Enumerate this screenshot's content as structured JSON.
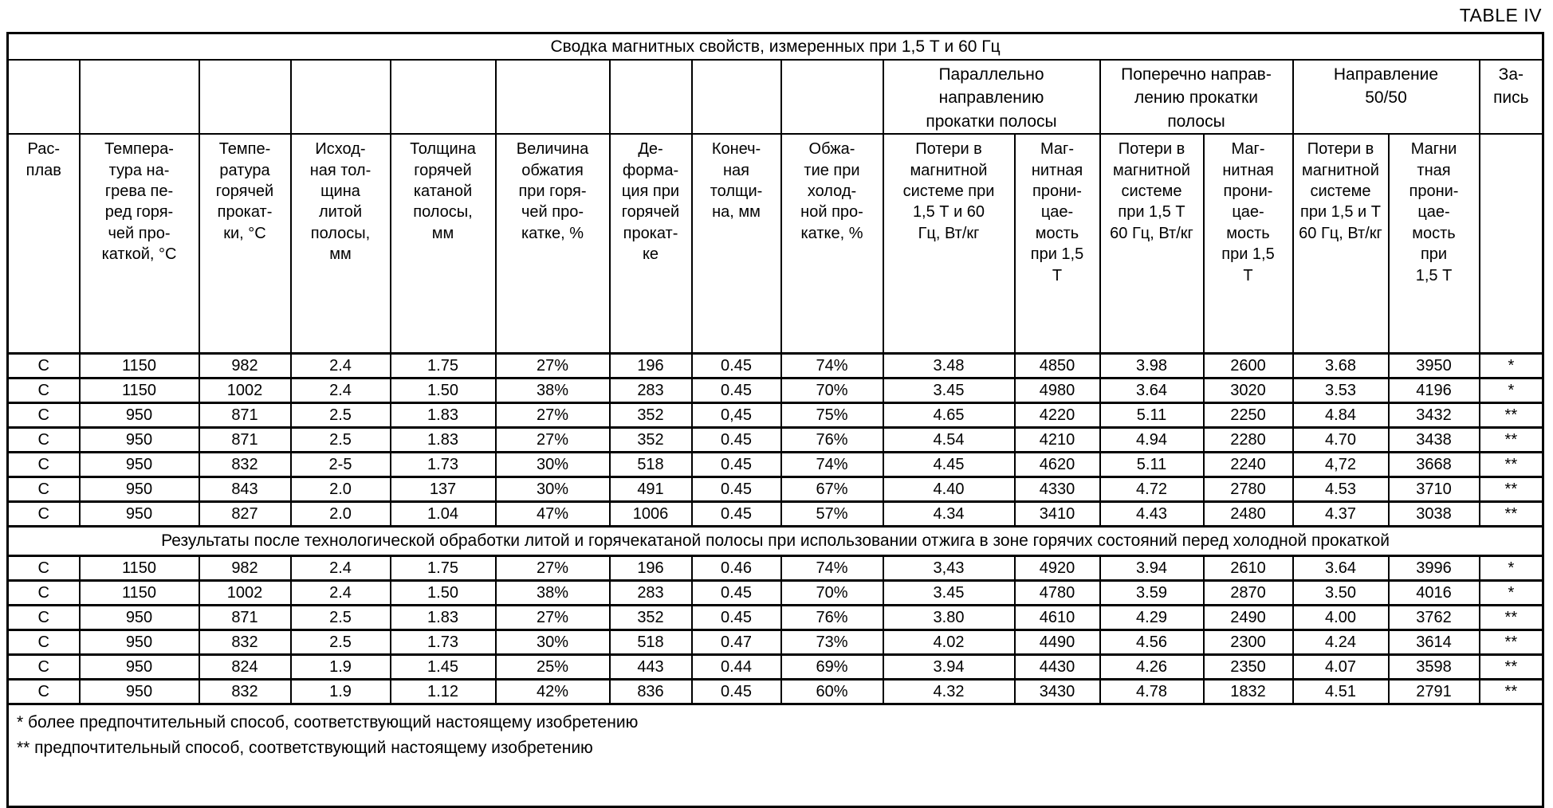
{
  "page": {
    "table_label": "TABLE IV"
  },
  "table": {
    "title": "Сводка магнитных свойств, измеренных при 1,5 Т и 60 Гц",
    "group_headers": {
      "parallel": "Параллельно направлению\nпрокатки полосы",
      "transverse": "Поперечно направ-\nлению прокатки\nполосы",
      "direction_50_50": "Направление\n50/50",
      "record": "За-\nпись"
    },
    "columns": [
      "Рас-\nплав",
      "Темпера-\nтура на-\nгрева пе-\nред горя-\nчей про-\nкаткой, °С",
      "Темпе-\nратура\nгорячей\nпрокат-\nки, °С",
      "Исход-\nная тол-\nщина\nлитой\nполосы,\nмм",
      "Толщина\nгорячей\nкатаной\nполосы,\nмм",
      "Величина\nобжатия\nпри горя-\nчей про-\nкатке, %",
      "Де-\nформа-\nция при\nгорячей\nпрокат-\nке",
      "Конеч-\nная\nтолщи-\nна, мм",
      "Обжа-\nтие при\nхолод-\nной про-\nкатке, %",
      "Потери в\nмагнитной\nсистеме при\n1,5 Т и 60\nГц, Вт/кг",
      "Маг-\nнитная\nпрони-\nцае-\nмость\nпри 1,5\nТ",
      "Потери в\nмагнитной\nсистеме\nпри 1,5 Т\n60 Гц, Вт/кг",
      "Маг-\nнитная\nпрони-\nцае-\nмость\nпри 1,5\nТ",
      "Потери в\nмагнитной\nсистеме\nпри 1,5 и Т\n60 Гц, Вт/кг",
      "Магни\nтная\nпрони-\nцае-\nмость\nпри\n1,5 Т",
      ""
    ],
    "sections": [
      {
        "rows": [
          [
            "С",
            "1150",
            "982",
            "2.4",
            "1.75",
            "27%",
            "196",
            "0.45",
            "74%",
            "3.48",
            "4850",
            "3.98",
            "2600",
            "3.68",
            "3950",
            "*"
          ],
          [
            "С",
            "1150",
            "1002",
            "2.4",
            "1.50",
            "38%",
            "283",
            "0.45",
            "70%",
            "3.45",
            "4980",
            "3.64",
            "3020",
            "3.53",
            "4196",
            "*"
          ],
          [
            "С",
            "950",
            "871",
            "2.5",
            "1.83",
            "27%",
            "352",
            "0,45",
            "75%",
            "4.65",
            "4220",
            "5.11",
            "2250",
            "4.84",
            "3432",
            "**"
          ],
          [
            "С",
            "950",
            "871",
            "2.5",
            "1.83",
            "27%",
            "352",
            "0.45",
            "76%",
            "4.54",
            "4210",
            "4.94",
            "2280",
            "4.70",
            "3438",
            "**"
          ],
          [
            "С",
            "950",
            "832",
            "2-5",
            "1.73",
            "30%",
            "518",
            "0.45",
            "74%",
            "4.45",
            "4620",
            "5.11",
            "2240",
            "4,72",
            "3668",
            "**"
          ],
          [
            "С",
            "950",
            "843",
            "2.0",
            "137",
            "30%",
            "491",
            "0.45",
            "67%",
            "4.40",
            "4330",
            "4.72",
            "2780",
            "4.53",
            "3710",
            "**"
          ],
          [
            "С",
            "950",
            "827",
            "2.0",
            "1.04",
            "47%",
            "1006",
            "0.45",
            "57%",
            "4.34",
            "3410",
            "4.43",
            "2480",
            "4.37",
            "3038",
            "**"
          ]
        ]
      },
      {
        "heading": "Результаты после технологической обработки литой и горячекатаной полосы при использовании отжига в зоне горячих состояний перед холодной прокаткой",
        "rows": [
          [
            "С",
            "1150",
            "982",
            "2.4",
            "1.75",
            "27%",
            "196",
            "0.46",
            "74%",
            "3,43",
            "4920",
            "3.94",
            "2610",
            "3.64",
            "3996",
            "*"
          ],
          [
            "С",
            "1150",
            "1002",
            "2.4",
            "1.50",
            "38%",
            "283",
            "0.45",
            "70%",
            "3.45",
            "4780",
            "3.59",
            "2870",
            "3.50",
            "4016",
            "*"
          ],
          [
            "С",
            "950",
            "871",
            "2.5",
            "1.83",
            "27%",
            "352",
            "0.45",
            "76%",
            "3.80",
            "4610",
            "4.29",
            "2490",
            "4.00",
            "3762",
            "**"
          ],
          [
            "С",
            "950",
            "832",
            "2.5",
            "1.73",
            "30%",
            "518",
            "0.47",
            "73%",
            "4.02",
            "4490",
            "4.56",
            "2300",
            "4.24",
            "3614",
            "**"
          ],
          [
            "С",
            "950",
            "824",
            "1.9",
            "1.45",
            "25%",
            "443",
            "0.44",
            "69%",
            "3.94",
            "4430",
            "4.26",
            "2350",
            "4.07",
            "3598",
            "**"
          ],
          [
            "С",
            "950",
            "832",
            "1.9",
            "1.12",
            "42%",
            "836",
            "0.45",
            "60%",
            "4.32",
            "3430",
            "4.78",
            "1832",
            "4.51",
            "2791",
            "**"
          ]
        ]
      }
    ],
    "footnotes": [
      "* более предпочтительный способ, соответствующий настоящему изобретению",
      "** предпочтительный способ, соответствующий настоящему изобретению"
    ]
  }
}
